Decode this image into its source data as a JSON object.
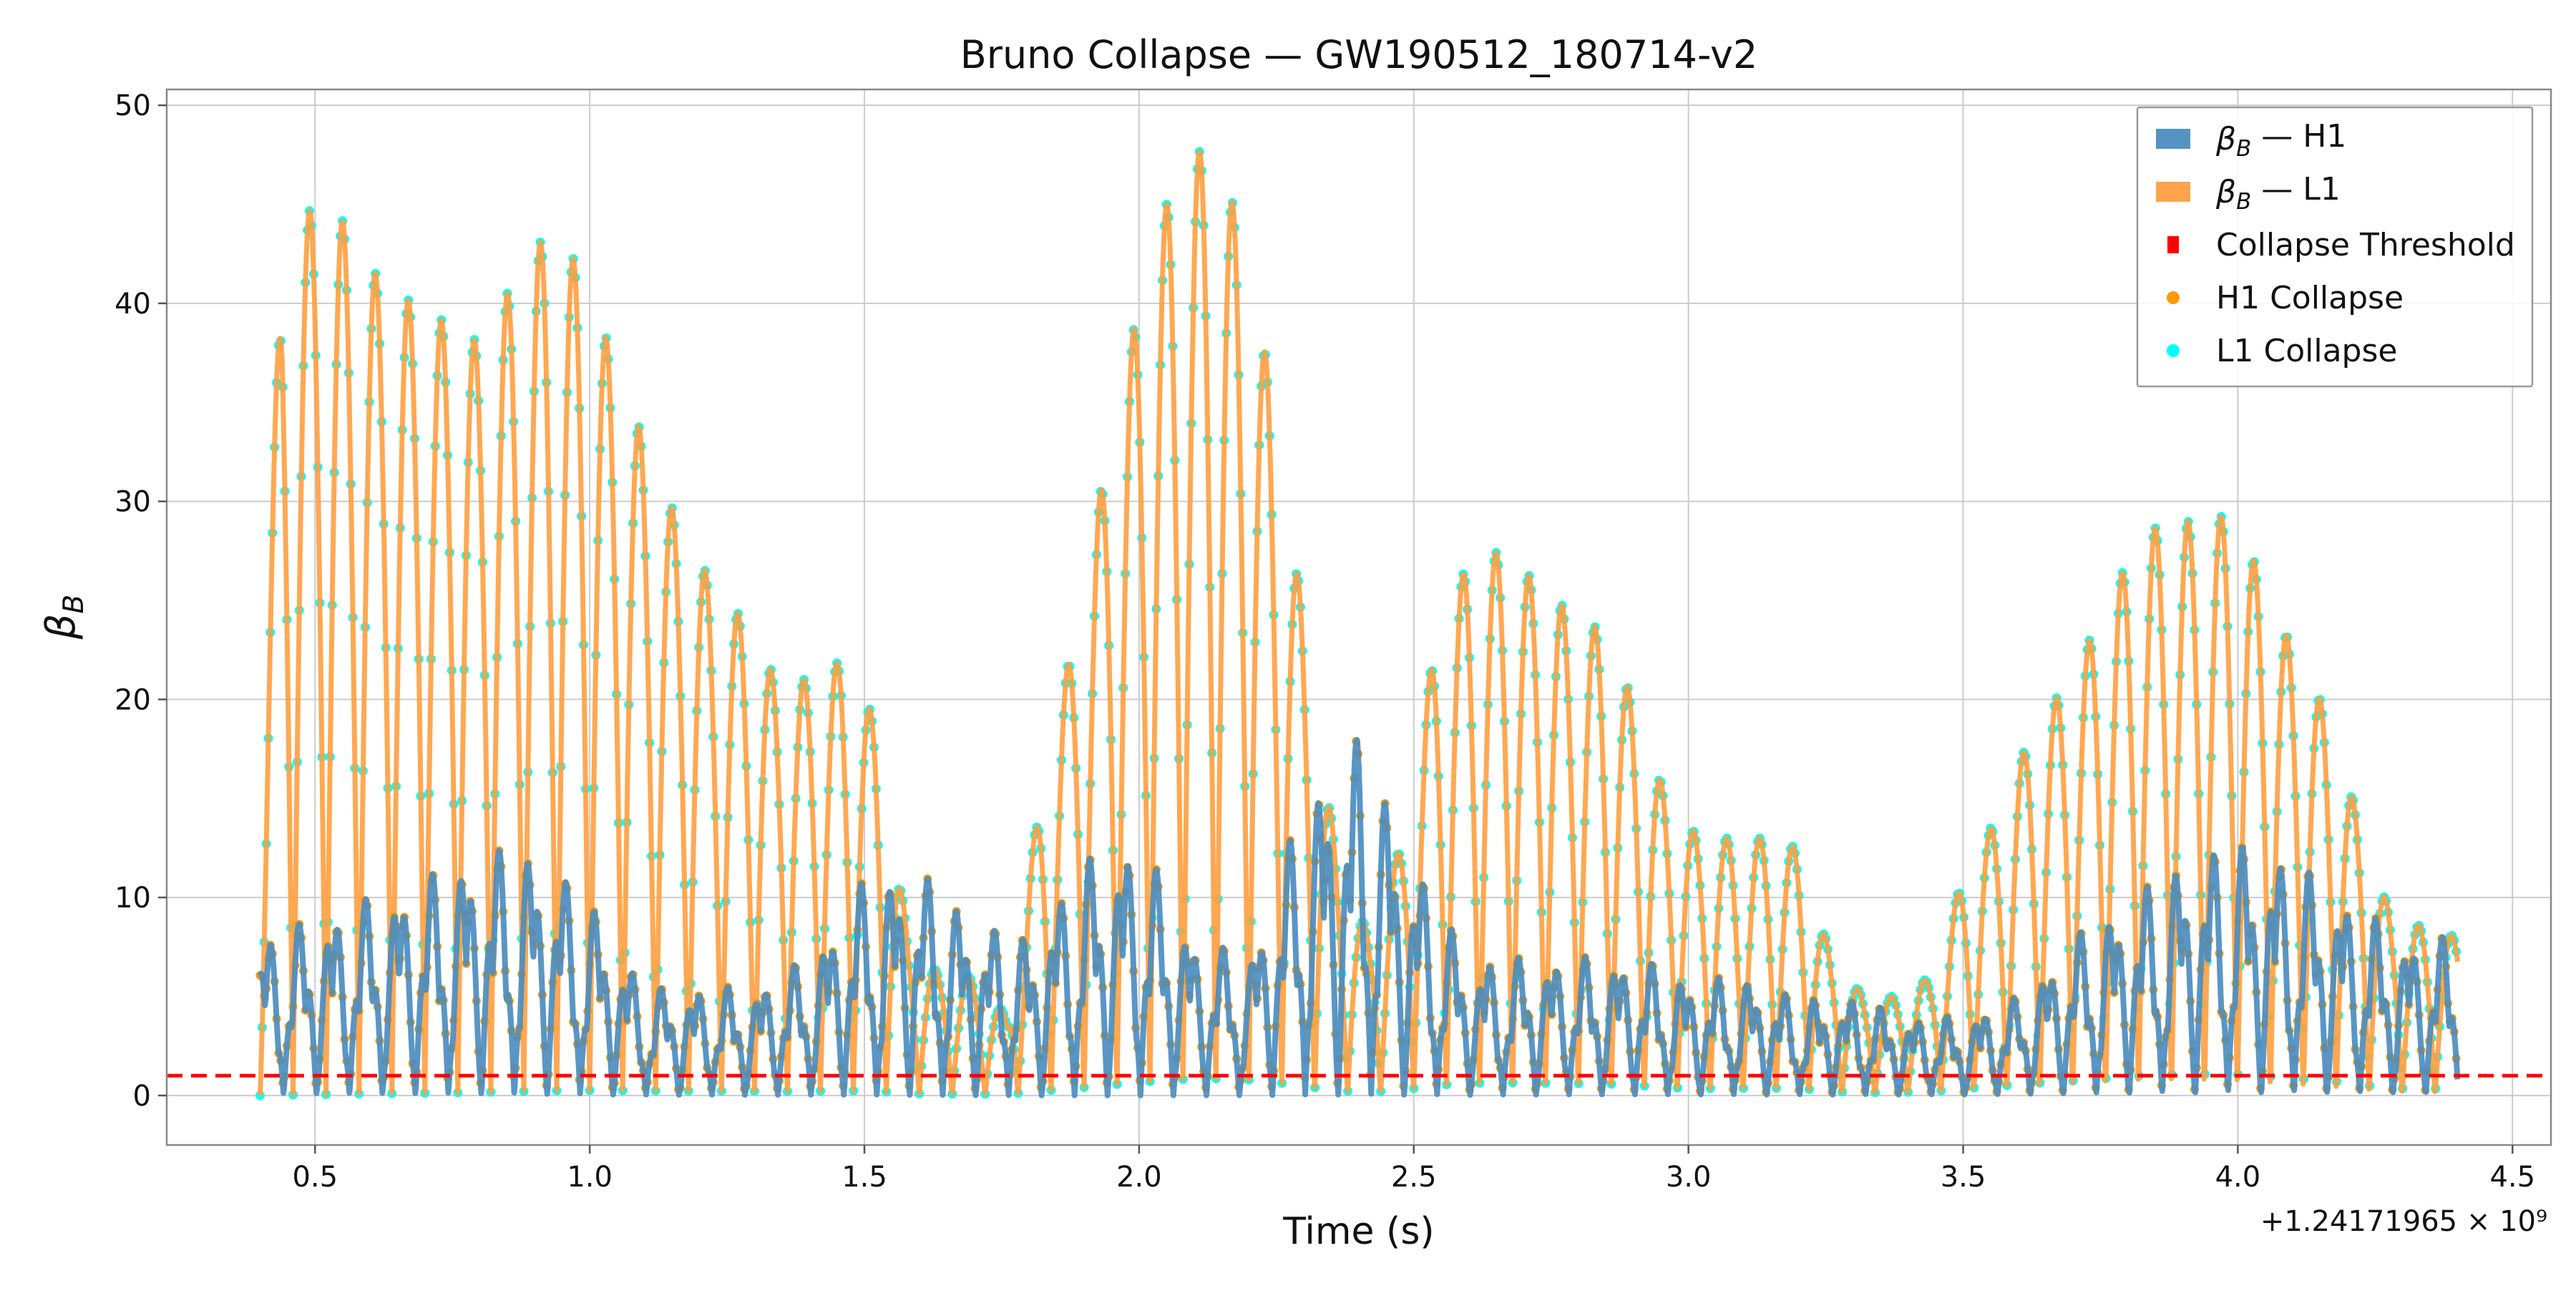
{
  "chart_data": {
    "type": "line",
    "title": "Bruno Collapse — GW190512_180714-v2",
    "xlabel": "Time (s)",
    "ylabel": "β_B",
    "x_offset_label": "+1.24171965 × 10⁹",
    "xlim": [
      0.23,
      4.57
    ],
    "ylim": [
      -2.5,
      50.8
    ],
    "x_ticks": [
      0.5,
      1.0,
      1.5,
      2.0,
      2.5,
      3.0,
      3.5,
      4.0,
      4.5
    ],
    "x_tick_labels": [
      "0.5",
      "1.0",
      "1.5",
      "2.0",
      "2.5",
      "3.0",
      "3.5",
      "4.0",
      "4.5"
    ],
    "y_ticks": [
      0,
      10,
      20,
      30,
      40,
      50
    ],
    "y_tick_labels": [
      "0",
      "10",
      "20",
      "30",
      "40",
      "50"
    ],
    "grid": true,
    "legend_position": "top-right",
    "colors": {
      "h1": "#4c8dbf",
      "l1": "#ff9f40",
      "threshold": "#ff0000",
      "h1_collapse": "#ff9900",
      "l1_collapse": "#00ffff",
      "grid": "#cccccc"
    },
    "legend": [
      {
        "label": "β_B — H1",
        "kind": "patch",
        "color": "#4c8dbf"
      },
      {
        "label": "β_B — L1",
        "kind": "patch",
        "color": "#ff9f40"
      },
      {
        "label": "Collapse Threshold",
        "kind": "square",
        "color": "#ff0000"
      },
      {
        "label": "H1 Collapse",
        "kind": "dot",
        "color": "#ff9900"
      },
      {
        "label": "L1 Collapse",
        "kind": "dot",
        "color": "#00ffff"
      }
    ],
    "threshold": 1.0,
    "x_start": 0.4,
    "x_end": 4.4,
    "l1_envelope": {
      "t": [
        0.4,
        0.44,
        0.5,
        0.56,
        0.62,
        0.68,
        0.74,
        0.8,
        0.86,
        0.92,
        0.98,
        1.04,
        1.1,
        1.16,
        1.22,
        1.28,
        1.34,
        1.4,
        1.46,
        1.52,
        1.58,
        1.64,
        1.7,
        1.76,
        1.82,
        1.88,
        1.94,
        2.0,
        2.06,
        2.12,
        2.18,
        2.24,
        2.3,
        2.36,
        2.42,
        2.48,
        2.54,
        2.6,
        2.66,
        2.72,
        2.78,
        2.84,
        2.9,
        2.96,
        3.02,
        3.08,
        3.14,
        3.2,
        3.26,
        3.32,
        3.38,
        3.44,
        3.5,
        3.56,
        3.62,
        3.68,
        3.74,
        3.8,
        3.86,
        3.92,
        3.98,
        4.04,
        4.1,
        4.16,
        4.22,
        4.28,
        4.34,
        4.4
      ],
      "peak": [
        15,
        43,
        45,
        44,
        41,
        40,
        39,
        38,
        41,
        43.5,
        42,
        37.5,
        33,
        29,
        26,
        24,
        21,
        21,
        22,
        19,
        8,
        6,
        6,
        4,
        15,
        23,
        32,
        40,
        46,
        48,
        44.5,
        36,
        24,
        12,
        8,
        13,
        23,
        27,
        27.5,
        26,
        24.5,
        23.5,
        20,
        15,
        13,
        13,
        13,
        12.5,
        7,
        5,
        5,
        6,
        11,
        14,
        18,
        20.5,
        23.5,
        27,
        29,
        29,
        29.3,
        26.5,
        22.5,
        19.5,
        14,
        9,
        8.5,
        8
      ]
    },
    "h1_envelope": {
      "t": [
        0.4,
        0.5,
        0.6,
        0.7,
        0.8,
        0.9,
        1.0,
        1.1,
        1.2,
        1.3,
        1.4,
        1.5,
        1.6,
        1.7,
        1.8,
        1.9,
        2.0,
        2.1,
        2.2,
        2.3,
        2.4,
        2.5,
        2.6,
        2.7,
        2.8,
        2.9,
        3.0,
        3.1,
        3.2,
        3.3,
        3.4,
        3.5,
        3.6,
        3.7,
        3.8,
        3.9,
        4.0,
        4.1,
        4.2,
        4.3,
        4.4
      ],
      "peak": [
        8,
        9,
        10,
        11,
        12.5,
        12.5,
        10,
        5.5,
        5.5,
        5.5,
        7,
        11,
        11.5,
        9,
        8,
        12,
        13,
        8,
        7,
        15,
        18.5,
        12,
        7,
        7,
        7,
        7,
        6,
        6,
        5,
        5,
        4,
        4,
        5,
        8,
        10,
        12,
        13,
        12,
        10,
        8,
        8
      ]
    }
  }
}
